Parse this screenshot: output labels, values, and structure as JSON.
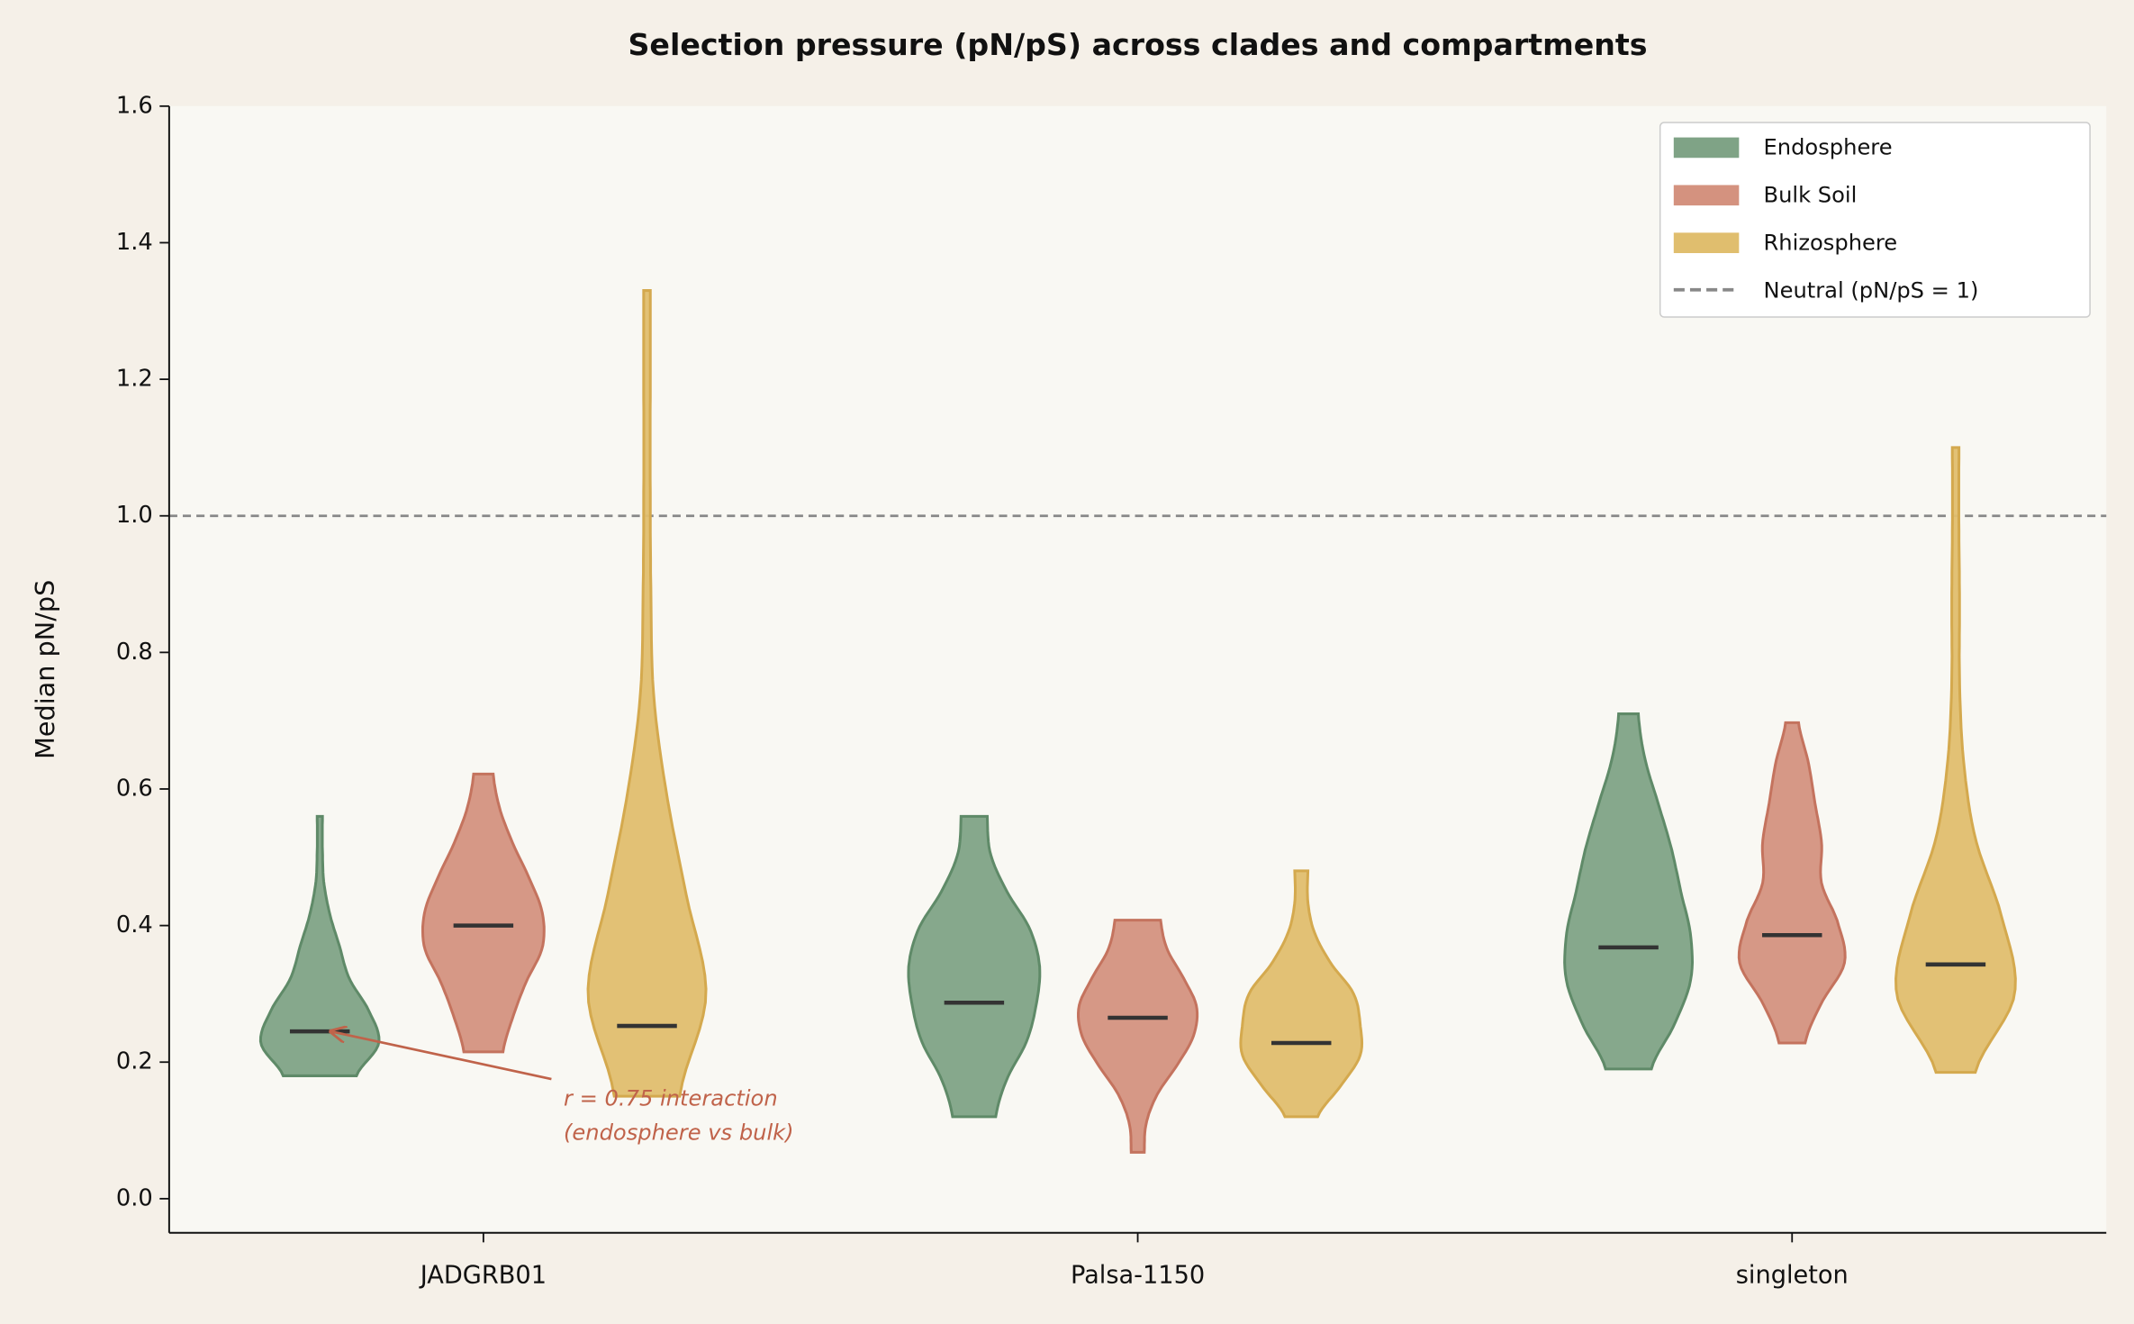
{
  "chart_data": {
    "type": "violin",
    "title": "Selection pressure (pN/pS) across clades and compartments",
    "y_label": "Median pN/pS",
    "categories": [
      "JADGRB01",
      "Palsa-1150",
      "singleton"
    ],
    "ylim": [
      -0.05,
      1.6
    ],
    "yticks": [
      {
        "value": 0,
        "label": "0.0"
      },
      0.2,
      0.4,
      0.6,
      0.8,
      {
        "value": 1,
        "label": "1.0"
      },
      1.2,
      1.4,
      1.6
    ],
    "legend": "upper right",
    "series": [
      {
        "name": "Endosphere",
        "color": "#7fa386",
        "edge_color": "#5f8a68",
        "values": [
          0.245,
          0.287,
          0.368
        ],
        "min": [
          0.18,
          0.12,
          0.19
        ],
        "max": [
          0.56,
          0.56,
          0.71
        ],
        "widths": [
          [
            0.056,
            0.09,
            0.075,
            0.045,
            0.03,
            0.015,
            0.006,
            0.004,
            0.004
          ],
          [
            0.033,
            0.05,
            0.08,
            0.095,
            0.1,
            0.085,
            0.05,
            0.025,
            0.02
          ],
          [
            0.035,
            0.07,
            0.095,
            0.095,
            0.08,
            0.065,
            0.045,
            0.025,
            0.015
          ]
        ]
      },
      {
        "name": "Bulk Soil",
        "color": "#d4927f",
        "edge_color": "#c4735e",
        "values": [
          0.4,
          0.265,
          0.386
        ],
        "min": [
          0.215,
          0.068,
          0.228
        ],
        "max": [
          0.622,
          0.408,
          0.697
        ],
        "widths": [
          [
            0.03,
            0.045,
            0.065,
            0.09,
            0.09,
            0.07,
            0.045,
            0.025,
            0.015
          ],
          [
            0.01,
            0.013,
            0.03,
            0.06,
            0.085,
            0.09,
            0.07,
            0.045,
            0.035
          ],
          [
            0.02,
            0.045,
            0.08,
            0.07,
            0.045,
            0.045,
            0.035,
            0.025,
            0.01
          ]
        ]
      },
      {
        "name": "Rhizosphere",
        "color": "#e0be6e",
        "edge_color": "#d4a94e",
        "values": [
          0.253,
          0.228,
          0.343
        ],
        "min": [
          0.15,
          0.12,
          0.185
        ],
        "max": [
          1.33,
          0.48,
          1.1
        ],
        "widths": [
          [
            0.05,
            0.09,
            0.06,
            0.03,
            0.01,
            0.006,
            0.005,
            0.005,
            0.005
          ],
          [
            0.025,
            0.06,
            0.09,
            0.09,
            0.08,
            0.045,
            0.02,
            0.01,
            0.01
          ],
          [
            0.03,
            0.09,
            0.07,
            0.03,
            0.012,
            0.006,
            0.006,
            0.005,
            0.005
          ]
        ]
      }
    ],
    "reference_line": {
      "value": 1,
      "label": "Neutral (pN/pS = 1)",
      "color": "#888888"
    },
    "annotation": {
      "lines": [
        "r = 0.75 interaction",
        "(endosphere vs bulk)"
      ],
      "color": "#c0634a"
    }
  }
}
